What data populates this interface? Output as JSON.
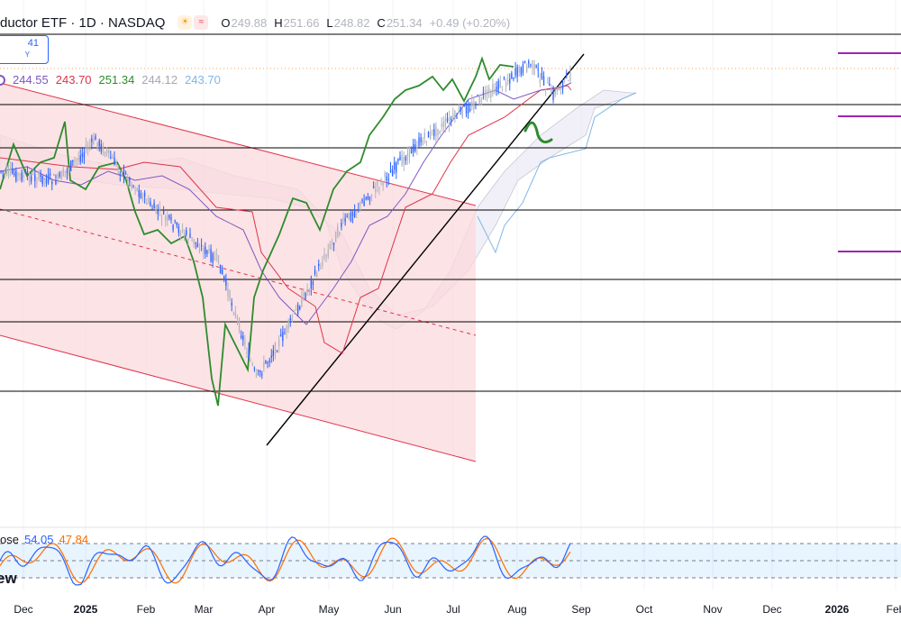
{
  "header": {
    "title": "ductor ETF · 1D · NASDAQ",
    "ohlc": [
      {
        "k": "O",
        "v": "249.88"
      },
      {
        "k": "H",
        "v": "251.66"
      },
      {
        "k": "L",
        "v": "248.82"
      },
      {
        "k": "C",
        "v": "251.34"
      }
    ],
    "change": "+0.49 (+0.20%)",
    "icons": [
      "weather-sun-icon",
      "approx-icon"
    ]
  },
  "price_box": {
    "price": "41",
    "sub": "Y"
  },
  "indicator_values": [
    {
      "v": "244.55",
      "color": "#7e57c2"
    },
    {
      "v": "243.70",
      "color": "#e0334a"
    },
    {
      "v": "251.34",
      "color": "#2e8b2e"
    },
    {
      "v": "244.12",
      "color": "#a5a8b3"
    },
    {
      "v": "243.70",
      "color": "#7fb7e8"
    }
  ],
  "stoch": {
    "label": "ose",
    "k": "54.05",
    "d": "47.84",
    "k_color": "#2962ff",
    "d_color": "#ff6d00",
    "band": [
      20,
      80
    ]
  },
  "logo": "ew",
  "colors": {
    "up": "#b2b5be",
    "down": "#2962ff",
    "chikou": "#2e8b2e",
    "tenkan": "#7e57c2",
    "kijun": "#e0334a",
    "channel": "#e0334a",
    "channel_fill": "#fbd9dc",
    "cloud_edge": "#7fb7e8",
    "trend": "#000000",
    "level": "#000000",
    "purple": "#9c27b0"
  },
  "chart_data": {
    "type": "candlestick",
    "title": "ductor ETF · 1D · NASDAQ",
    "x_labels": [
      "Dec",
      "2025",
      "Feb",
      "Mar",
      "Apr",
      "May",
      "Jun",
      "Jul",
      "Aug",
      "Sep",
      "Oct",
      "Nov",
      "Dec",
      "2026",
      "Feb"
    ],
    "last": {
      "open": 249.88,
      "high": 251.66,
      "low": 248.82,
      "close": 251.34,
      "change": 0.49,
      "change_pct": 0.2
    },
    "ichimoku": {
      "tenkan": 244.55,
      "kijun": 243.7,
      "chikou": 251.34,
      "span_a": 244.12,
      "span_b": 243.7
    },
    "stochastic": {
      "k": 54.05,
      "d": 47.84,
      "upper": 80,
      "lower": 20
    },
    "grid": true
  }
}
